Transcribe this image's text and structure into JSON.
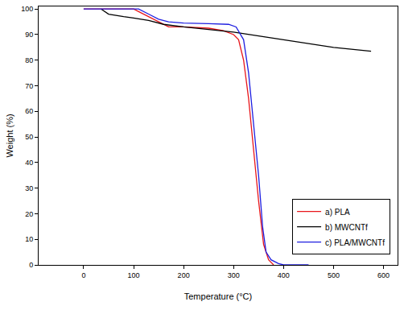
{
  "chart_data": {
    "type": "line",
    "x_label": "Temperature (°C)",
    "y_label": "Weight (%)",
    "xlim": [
      -90,
      628
    ],
    "ylim": [
      0,
      101
    ],
    "xticks": [
      0,
      100,
      200,
      300,
      400,
      500,
      600
    ],
    "yticks": [
      0,
      10,
      20,
      30,
      40,
      50,
      60,
      70,
      80,
      90,
      100
    ],
    "grid": false,
    "legend": "lower right",
    "series": [
      {
        "name": "a) PLA",
        "color": "#e8161b",
        "x": [
          0,
          50,
          100,
          110,
          130,
          160,
          170,
          200,
          250,
          280,
          300,
          310,
          320,
          330,
          340,
          350,
          360,
          370,
          380
        ],
        "values": [
          100,
          100,
          100,
          99,
          97,
          94,
          93,
          93,
          92.5,
          91.5,
          90,
          88,
          80,
          65,
          45,
          25,
          8,
          2,
          0
        ]
      },
      {
        "name": "b) MWCNTf",
        "color": "#000000",
        "x": [
          35,
          50,
          80,
          100,
          130,
          160,
          200,
          250,
          300,
          350,
          400,
          450,
          500,
          575
        ],
        "values": [
          100,
          98,
          97,
          96.5,
          95.5,
          94,
          93,
          92,
          91,
          89.5,
          88,
          86.5,
          85,
          83.5
        ]
      },
      {
        "name": "c) PLA/MWCNTf",
        "color": "#1f1fe0",
        "x": [
          0,
          50,
          110,
          130,
          150,
          170,
          200,
          250,
          290,
          305,
          320,
          330,
          340,
          350,
          358,
          365,
          375,
          390,
          400,
          450
        ],
        "values": [
          100,
          100,
          100,
          98,
          96,
          95,
          94.5,
          94.3,
          94,
          93,
          88,
          75,
          55,
          35,
          15,
          5,
          2,
          0.5,
          0,
          0
        ]
      }
    ]
  }
}
